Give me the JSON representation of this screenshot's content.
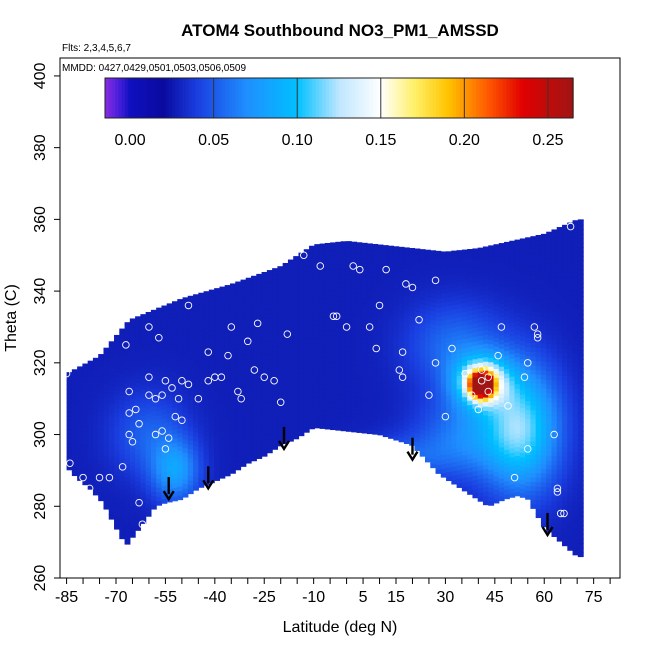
{
  "chart_data": {
    "type": "heatmap",
    "title": "ATOM4 Southbound NO3_PM1_AMSSD",
    "flights_note": "Flts: 2,3,4,5,6,7",
    "dates_note": "MMDD: 0427,0429,0501,0503,0506,0509",
    "xlabel": "Latitude (deg N)",
    "ylabel": "Theta (C)",
    "xlim": [
      -87,
      83
    ],
    "ylim": [
      260,
      405
    ],
    "x_ticks": [
      -85,
      -70,
      -55,
      -40,
      -25,
      -10,
      5,
      15,
      30,
      45,
      60,
      75
    ],
    "x_minor_step": 5,
    "y_ticks": [
      260,
      280,
      300,
      320,
      340,
      360,
      380,
      400
    ],
    "colorbar": {
      "range": [
        -0.015,
        0.265
      ],
      "ticks": [
        0.0,
        0.05,
        0.1,
        0.15,
        0.2,
        0.25
      ],
      "tick_labels": [
        "0.00",
        "0.05",
        "0.10",
        "0.15",
        "0.20",
        "0.25"
      ],
      "stops": [
        {
          "v": -0.015,
          "c": "#8a2be2"
        },
        {
          "v": -0.005,
          "c": "#3a1cd8"
        },
        {
          "v": 0.0,
          "c": "#1010c0"
        },
        {
          "v": 0.02,
          "c": "#0a0a9e"
        },
        {
          "v": 0.04,
          "c": "#1a3ee0"
        },
        {
          "v": 0.07,
          "c": "#1f8fff"
        },
        {
          "v": 0.1,
          "c": "#00c0ff"
        },
        {
          "v": 0.125,
          "c": "#bfe6ff"
        },
        {
          "v": 0.15,
          "c": "#ffffff"
        },
        {
          "v": 0.17,
          "c": "#fff06a"
        },
        {
          "v": 0.19,
          "c": "#ffc400"
        },
        {
          "v": 0.215,
          "c": "#ff5500"
        },
        {
          "v": 0.235,
          "c": "#e00000"
        },
        {
          "v": 0.265,
          "c": "#a01515"
        }
      ]
    },
    "domain_top": [
      [
        -85,
        317
      ],
      [
        -75,
        322
      ],
      [
        -66,
        332
      ],
      [
        -50,
        338
      ],
      [
        -35,
        342
      ],
      [
        -20,
        347
      ],
      [
        -10,
        353
      ],
      [
        0,
        354
      ],
      [
        10,
        353
      ],
      [
        20,
        352
      ],
      [
        30,
        351
      ],
      [
        40,
        352
      ],
      [
        50,
        354
      ],
      [
        60,
        356
      ],
      [
        70,
        360
      ],
      [
        71,
        360
      ]
    ],
    "domain_bottom": [
      [
        -85,
        291
      ],
      [
        -82,
        288
      ],
      [
        -78,
        285
      ],
      [
        -74,
        281
      ],
      [
        -70,
        274
      ],
      [
        -67,
        269
      ],
      [
        -62,
        275
      ],
      [
        -58,
        280
      ],
      [
        -55,
        281
      ],
      [
        -50,
        282
      ],
      [
        -45,
        285
      ],
      [
        -40,
        287
      ],
      [
        -35,
        289
      ],
      [
        -30,
        292
      ],
      [
        -25,
        294
      ],
      [
        -20,
        297
      ],
      [
        -15,
        299
      ],
      [
        -10,
        302
      ],
      [
        0,
        301
      ],
      [
        10,
        300
      ],
      [
        20,
        297
      ],
      [
        25,
        292
      ],
      [
        28,
        289
      ],
      [
        33,
        286
      ],
      [
        38,
        283
      ],
      [
        43,
        280
      ],
      [
        48,
        282
      ],
      [
        52,
        283
      ],
      [
        55,
        282
      ],
      [
        60,
        274
      ],
      [
        65,
        270
      ],
      [
        70,
        266
      ],
      [
        71,
        266
      ]
    ],
    "field_background": 0.028,
    "field_features": [
      {
        "lat": 41,
        "theta": 314,
        "peak": 0.22,
        "sx": 2.5,
        "sy": 2.5
      },
      {
        "lat": 41,
        "theta": 315,
        "peak": 0.1,
        "sx": 6,
        "sy": 5
      },
      {
        "lat": 53,
        "theta": 302,
        "peak": 0.085,
        "sx": 8,
        "sy": 12
      },
      {
        "lat": 36,
        "theta": 300,
        "peak": 0.035,
        "sx": 10,
        "sy": 8
      },
      {
        "lat": 33,
        "theta": 325,
        "peak": 0.03,
        "sx": 10,
        "sy": 8
      },
      {
        "lat": -52,
        "theta": 290,
        "peak": 0.05,
        "sx": 5,
        "sy": 6
      },
      {
        "lat": -60,
        "theta": 300,
        "peak": 0.025,
        "sx": 8,
        "sy": 8
      },
      {
        "lat": 18,
        "theta": 294,
        "peak": 0.02,
        "sx": 10,
        "sy": 4
      }
    ],
    "observations": [
      [
        -85,
        317
      ],
      [
        -84,
        292
      ],
      [
        -80,
        288
      ],
      [
        -78,
        285
      ],
      [
        -75,
        288
      ],
      [
        -72,
        288
      ],
      [
        -68,
        291
      ],
      [
        -67,
        325
      ],
      [
        -66,
        312
      ],
      [
        -66,
        306
      ],
      [
        -66,
        300
      ],
      [
        -65,
        298
      ],
      [
        -64,
        307
      ],
      [
        -63,
        303
      ],
      [
        -63,
        281
      ],
      [
        -62,
        275
      ],
      [
        -60,
        330
      ],
      [
        -60,
        311
      ],
      [
        -60,
        316
      ],
      [
        -58,
        310
      ],
      [
        -57,
        327
      ],
      [
        -56,
        311
      ],
      [
        -55,
        315
      ],
      [
        -55,
        296
      ],
      [
        -53,
        313
      ],
      [
        -52,
        305
      ],
      [
        -51,
        310
      ],
      [
        -50,
        315
      ],
      [
        -50,
        304
      ],
      [
        -48,
        314
      ],
      [
        -48,
        336
      ],
      [
        -46,
        281
      ],
      [
        -45,
        310
      ],
      [
        -42,
        315
      ],
      [
        -42,
        323
      ],
      [
        -40,
        316
      ],
      [
        -38,
        316
      ],
      [
        -36,
        322
      ],
      [
        -35,
        330
      ],
      [
        -33,
        312
      ],
      [
        -32,
        310
      ],
      [
        -30,
        326
      ],
      [
        -28,
        318
      ],
      [
        -27,
        331
      ],
      [
        -25,
        316
      ],
      [
        -22,
        315
      ],
      [
        -22,
        286
      ],
      [
        -18,
        328
      ],
      [
        -13,
        350
      ],
      [
        -8,
        347
      ],
      [
        -4,
        333
      ],
      [
        -3,
        333
      ],
      [
        0,
        330
      ],
      [
        2,
        347
      ],
      [
        4,
        346
      ],
      [
        7,
        330
      ],
      [
        9,
        324
      ],
      [
        10,
        336
      ],
      [
        12,
        346
      ],
      [
        16,
        318
      ],
      [
        17,
        323
      ],
      [
        17,
        316
      ],
      [
        18,
        342
      ],
      [
        20,
        341
      ],
      [
        22,
        332
      ],
      [
        25,
        311
      ],
      [
        27,
        343
      ],
      [
        27,
        320
      ],
      [
        30,
        305
      ],
      [
        32,
        324
      ],
      [
        36,
        317
      ],
      [
        38,
        311
      ],
      [
        40,
        307
      ],
      [
        41,
        315
      ],
      [
        41,
        318
      ],
      [
        43,
        316
      ],
      [
        43,
        312
      ],
      [
        46,
        322
      ],
      [
        47,
        330
      ],
      [
        49,
        308
      ],
      [
        51,
        288
      ],
      [
        54,
        316
      ],
      [
        55,
        320
      ],
      [
        55,
        296
      ],
      [
        57,
        330
      ],
      [
        58,
        328
      ],
      [
        58,
        327
      ],
      [
        63,
        300
      ],
      [
        64,
        285
      ],
      [
        64,
        284
      ],
      [
        65,
        278
      ],
      [
        66,
        278
      ],
      [
        68,
        358
      ],
      [
        -58,
        300
      ],
      [
        -56,
        301
      ],
      [
        -54,
        299
      ],
      [
        -20,
        309
      ]
    ],
    "arrows": [
      {
        "lat": -54,
        "theta": 282
      },
      {
        "lat": -42,
        "theta": 285
      },
      {
        "lat": -19,
        "theta": 296
      },
      {
        "lat": 20,
        "theta": 293
      },
      {
        "lat": 61,
        "theta": 272
      }
    ]
  }
}
